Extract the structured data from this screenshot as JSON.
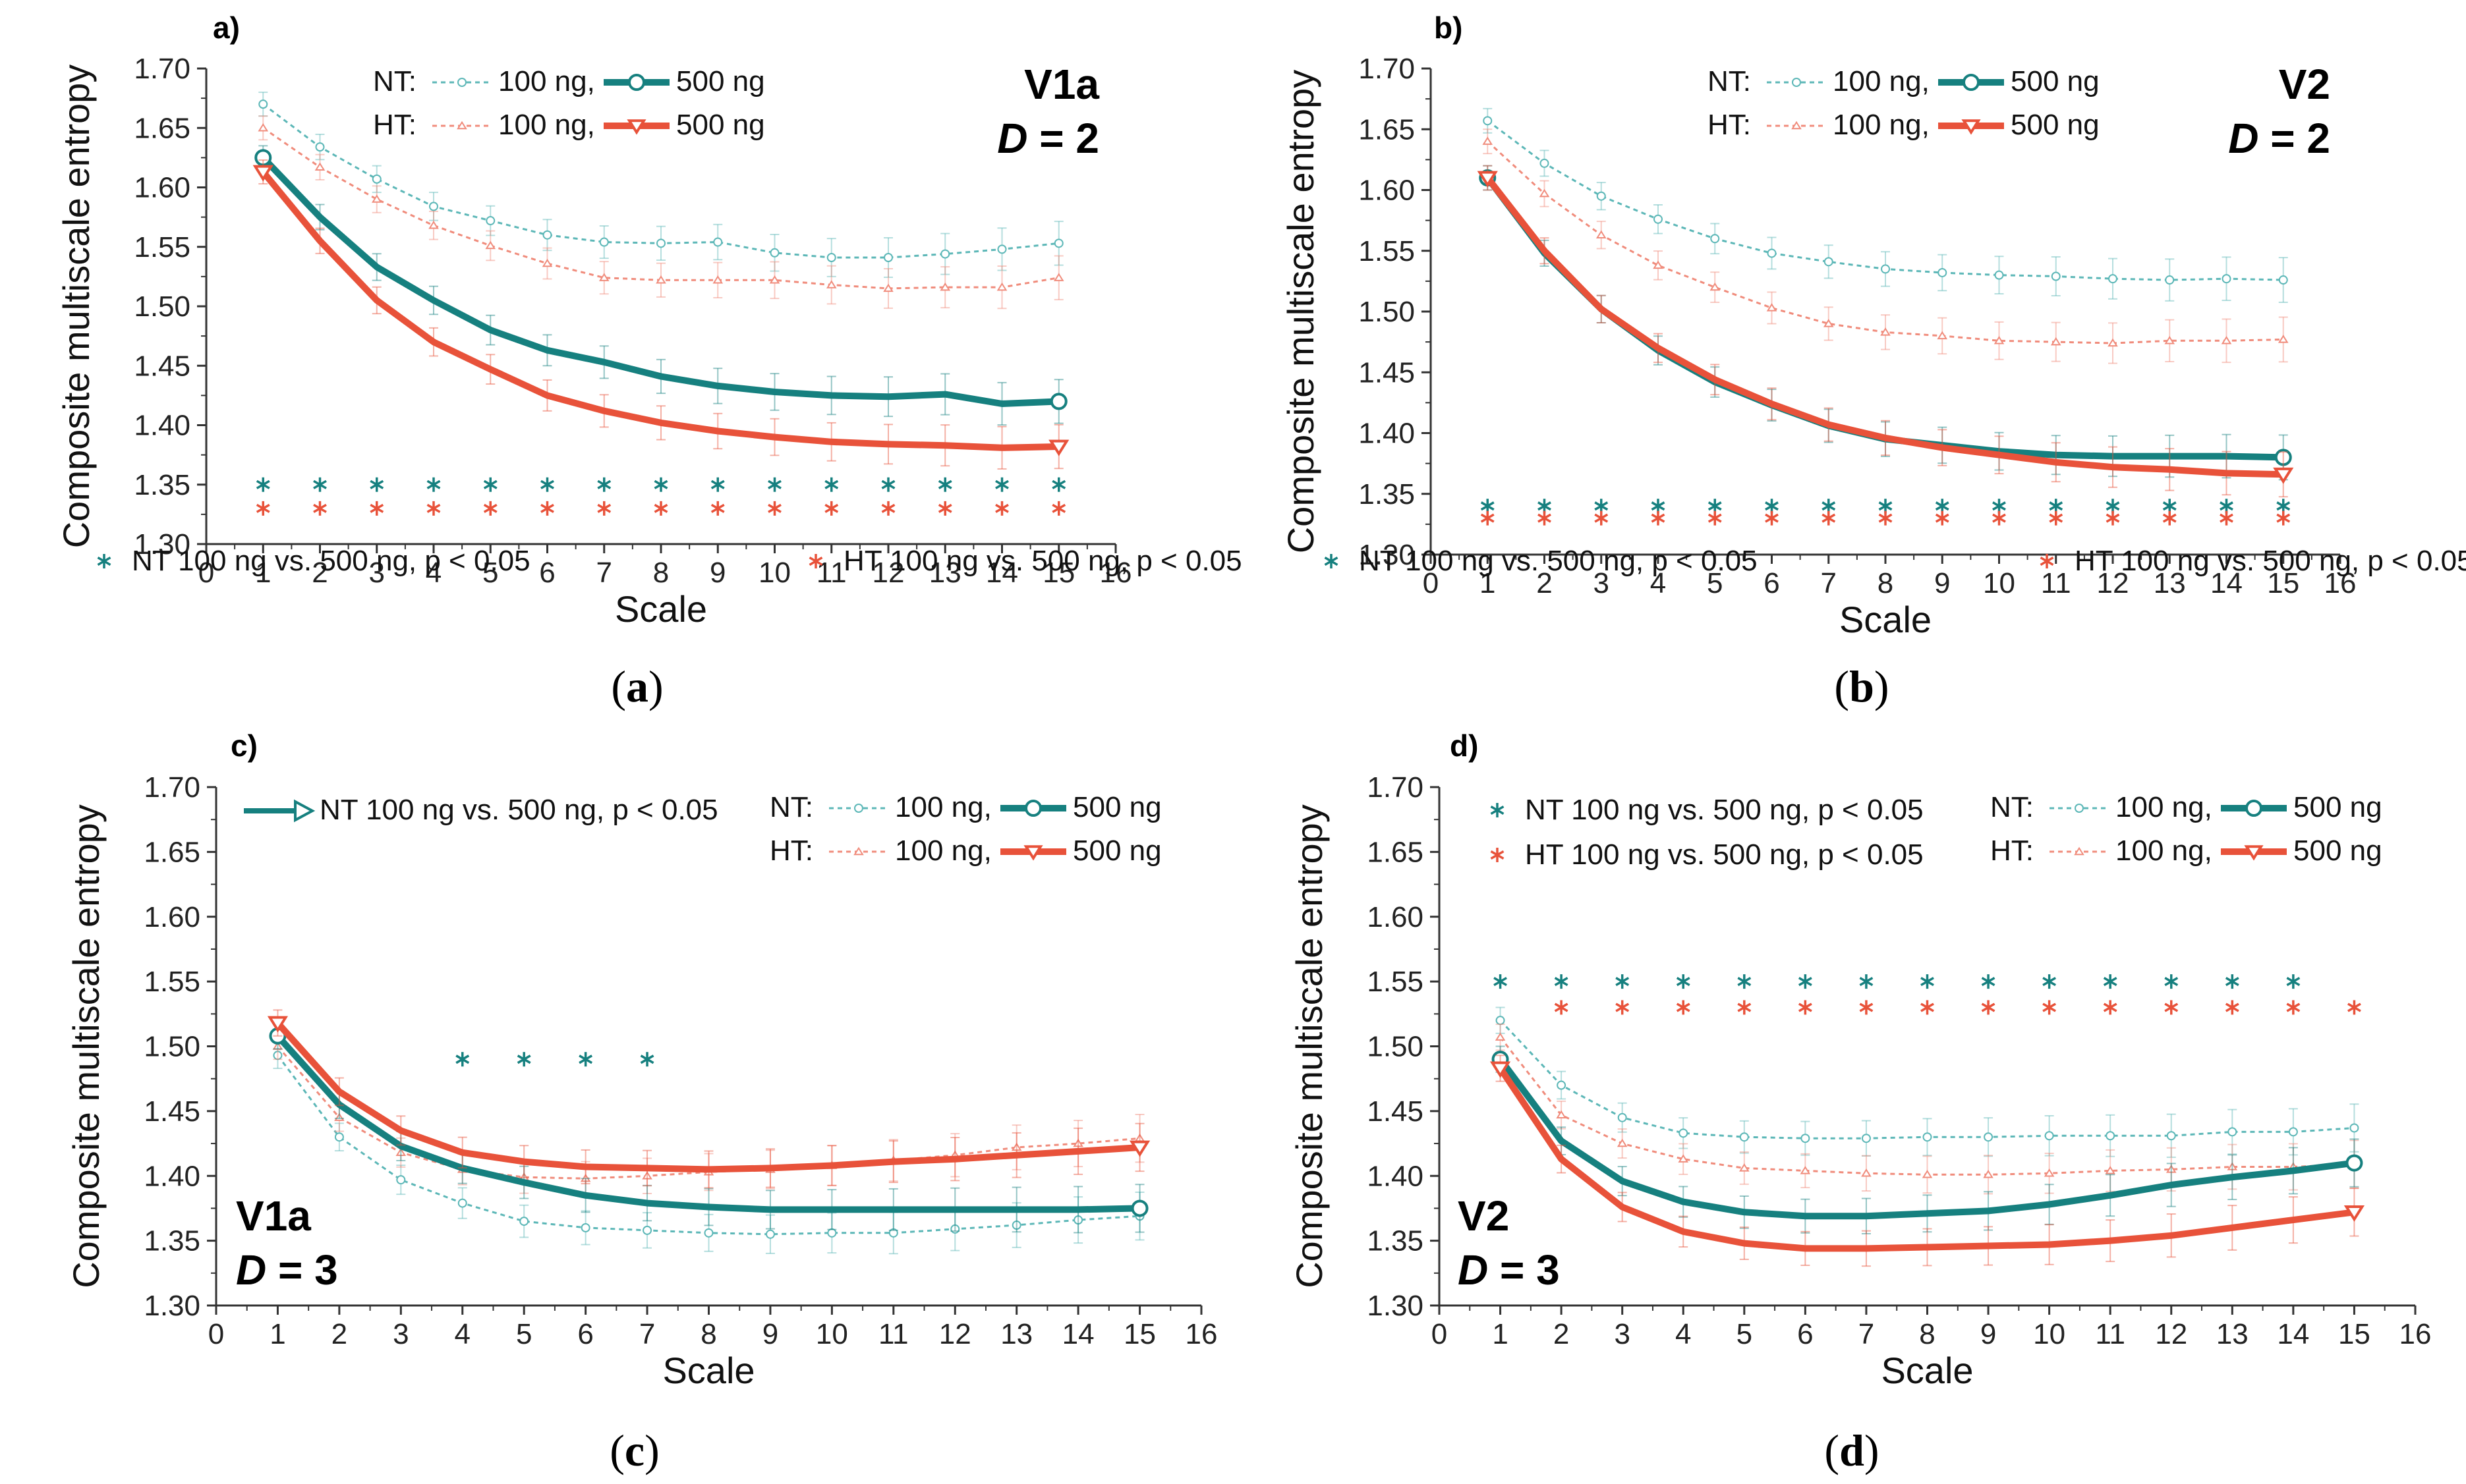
{
  "colors": {
    "nt": "#16807f",
    "ht": "#e8523a",
    "nt_light": "#5cb7b7",
    "ht_light": "#f08c7c"
  },
  "chart_data": [
    {
      "type": "line",
      "panel": "a)",
      "caption": "a",
      "tag_line1": "V1a",
      "tag_line2_italic": "D",
      "tag_line2_rest": " = 2",
      "xlabel": "Scale",
      "ylabel": "Composite multiscale entropy",
      "xlim": [
        0,
        16
      ],
      "ylim": [
        1.3,
        1.7
      ],
      "xticks": [
        "0",
        "1",
        "2",
        "3",
        "4",
        "5",
        "6",
        "7",
        "8",
        "9",
        "10",
        "11",
        "12",
        "13",
        "14",
        "15",
        "16"
      ],
      "yticks": [
        "1.30",
        "1.35",
        "1.40",
        "1.45",
        "1.50",
        "1.55",
        "1.60",
        "1.65",
        "1.70"
      ],
      "legend_nt": "NT:",
      "legend_ht": "HT:",
      "legend_100": "100 ng,",
      "legend_500": "500 ng",
      "sig_labels": [
        "NT 100 ng vs. 500 ng, p < 0.05",
        "HT 100 ng vs. 500 ng, p < 0.05"
      ],
      "x": [
        1,
        2,
        3,
        4,
        5,
        6,
        7,
        8,
        9,
        10,
        11,
        12,
        13,
        14,
        15
      ],
      "series": [
        {
          "name": "NT 100 ng",
          "values": [
            1.67,
            1.634,
            1.607,
            1.584,
            1.572,
            1.56,
            1.554,
            1.553,
            1.554,
            1.545,
            1.541,
            1.541,
            1.544,
            1.548,
            1.553
          ]
        },
        {
          "name": "HT 100 ng",
          "values": [
            1.65,
            1.617,
            1.59,
            1.568,
            1.551,
            1.536,
            1.524,
            1.522,
            1.522,
            1.522,
            1.518,
            1.515,
            1.516,
            1.516,
            1.524
          ]
        },
        {
          "name": "NT 500 ng",
          "values": [
            1.625,
            1.575,
            1.533,
            1.505,
            1.48,
            1.463,
            1.453,
            1.441,
            1.433,
            1.428,
            1.425,
            1.424,
            1.426,
            1.418,
            1.42
          ]
        },
        {
          "name": "HT 500 ng",
          "values": [
            1.613,
            1.555,
            1.505,
            1.47,
            1.447,
            1.425,
            1.412,
            1.402,
            1.395,
            1.39,
            1.386,
            1.384,
            1.383,
            1.381,
            1.382
          ]
        }
      ],
      "sig_nt": {
        "y": 1.35,
        "x": [
          1,
          2,
          3,
          4,
          5,
          6,
          7,
          8,
          9,
          10,
          11,
          12,
          13,
          14,
          15
        ]
      },
      "sig_ht": {
        "y": 1.33,
        "x": [
          1,
          2,
          3,
          4,
          5,
          6,
          7,
          8,
          9,
          10,
          11,
          12,
          13,
          14,
          15
        ]
      }
    },
    {
      "type": "line",
      "panel": "b)",
      "caption": "b",
      "tag_line1": "V2",
      "tag_line2_italic": "D",
      "tag_line2_rest": " = 2",
      "xlabel": "Scale",
      "ylabel": "Composite multiscale entropy",
      "xlim": [
        0,
        16
      ],
      "ylim": [
        1.3,
        1.7
      ],
      "xticks": [
        "0",
        "1",
        "2",
        "3",
        "4",
        "5",
        "6",
        "7",
        "8",
        "9",
        "10",
        "11",
        "12",
        "13",
        "14",
        "15",
        "16"
      ],
      "yticks": [
        "1.30",
        "1.35",
        "1.40",
        "1.45",
        "1.50",
        "1.55",
        "1.60",
        "1.65",
        "1.70"
      ],
      "legend_nt": "NT:",
      "legend_ht": "HT:",
      "legend_100": "100 ng,",
      "legend_500": "500 ng",
      "sig_labels": [
        "NT 100 ng vs. 500 ng, p < 0.05",
        "HT 100 ng vs. 500 ng, p < 0.05"
      ],
      "x": [
        1,
        2,
        3,
        4,
        5,
        6,
        7,
        8,
        9,
        10,
        11,
        12,
        13,
        14,
        15
      ],
      "series": [
        {
          "name": "NT 100 ng",
          "values": [
            1.657,
            1.622,
            1.595,
            1.576,
            1.56,
            1.548,
            1.541,
            1.535,
            1.532,
            1.53,
            1.529,
            1.527,
            1.526,
            1.527,
            1.526
          ]
        },
        {
          "name": "HT 100 ng",
          "values": [
            1.64,
            1.597,
            1.563,
            1.538,
            1.52,
            1.503,
            1.49,
            1.483,
            1.48,
            1.476,
            1.475,
            1.474,
            1.476,
            1.476,
            1.477
          ]
        },
        {
          "name": "NT 500 ng",
          "values": [
            1.61,
            1.548,
            1.502,
            1.468,
            1.442,
            1.423,
            1.406,
            1.395,
            1.39,
            1.385,
            1.382,
            1.381,
            1.381,
            1.381,
            1.38
          ]
        },
        {
          "name": "HT 500 ng",
          "values": [
            1.61,
            1.55,
            1.502,
            1.47,
            1.444,
            1.424,
            1.407,
            1.396,
            1.388,
            1.382,
            1.376,
            1.372,
            1.37,
            1.367,
            1.366
          ]
        }
      ],
      "sig_nt": {
        "y": 1.34,
        "x": [
          1,
          2,
          3,
          4,
          5,
          6,
          7,
          8,
          9,
          10,
          11,
          12,
          13,
          14,
          15
        ]
      },
      "sig_ht": {
        "y": 1.33,
        "x": [
          1,
          2,
          3,
          4,
          5,
          6,
          7,
          8,
          9,
          10,
          11,
          12,
          13,
          14,
          15
        ]
      }
    },
    {
      "type": "line",
      "panel": "c)",
      "caption": "c",
      "tag_line1": "V1a",
      "tag_line2_italic": "D",
      "tag_line2_rest": " = 3",
      "xlabel": "Scale",
      "ylabel": "Composite multiscale entropy",
      "xlim": [
        0,
        16
      ],
      "ylim": [
        1.3,
        1.7
      ],
      "xticks": [
        "0",
        "1",
        "2",
        "3",
        "4",
        "5",
        "6",
        "7",
        "8",
        "9",
        "10",
        "11",
        "12",
        "13",
        "14",
        "15",
        "16"
      ],
      "yticks": [
        "1.30",
        "1.35",
        "1.40",
        "1.45",
        "1.50",
        "1.55",
        "1.60",
        "1.65",
        "1.70"
      ],
      "legend_nt": "NT:",
      "legend_ht": "HT:",
      "legend_100": "100 ng,",
      "legend_500": "500 ng",
      "sig_labels": [
        "NT 100 ng vs. 500 ng, p < 0.05"
      ],
      "x": [
        1,
        2,
        3,
        4,
        5,
        6,
        7,
        8,
        9,
        10,
        11,
        12,
        13,
        14,
        15
      ],
      "series": [
        {
          "name": "NT 100 ng",
          "values": [
            1.493,
            1.43,
            1.397,
            1.379,
            1.365,
            1.36,
            1.358,
            1.356,
            1.355,
            1.356,
            1.356,
            1.359,
            1.362,
            1.366,
            1.369
          ]
        },
        {
          "name": "HT 100 ng",
          "values": [
            1.5,
            1.445,
            1.418,
            1.405,
            1.399,
            1.398,
            1.4,
            1.403,
            1.405,
            1.408,
            1.412,
            1.416,
            1.422,
            1.425,
            1.429
          ]
        },
        {
          "name": "NT 500 ng",
          "values": [
            1.508,
            1.455,
            1.423,
            1.406,
            1.395,
            1.385,
            1.379,
            1.376,
            1.374,
            1.374,
            1.374,
            1.374,
            1.374,
            1.374,
            1.375
          ]
        },
        {
          "name": "HT 500 ng",
          "values": [
            1.518,
            1.465,
            1.435,
            1.418,
            1.411,
            1.407,
            1.406,
            1.405,
            1.406,
            1.408,
            1.411,
            1.413,
            1.416,
            1.419,
            1.422
          ]
        }
      ],
      "sig_nt": {
        "y": 1.49,
        "x": [
          4,
          5,
          6,
          7
        ]
      },
      "sig_ht": {
        "y": 1.49,
        "x": []
      }
    },
    {
      "type": "line",
      "panel": "d)",
      "caption": "d",
      "tag_line1": "V2",
      "tag_line2_italic": "D",
      "tag_line2_rest": " = 3",
      "xlabel": "Scale",
      "ylabel": "Composite multiscale entropy",
      "xlim": [
        0,
        16
      ],
      "ylim": [
        1.3,
        1.7
      ],
      "xticks": [
        "0",
        "1",
        "2",
        "3",
        "4",
        "5",
        "6",
        "7",
        "8",
        "9",
        "10",
        "11",
        "12",
        "13",
        "14",
        "15",
        "16"
      ],
      "yticks": [
        "1.30",
        "1.35",
        "1.40",
        "1.45",
        "1.50",
        "1.55",
        "1.60",
        "1.65",
        "1.70"
      ],
      "legend_nt": "NT:",
      "legend_ht": "HT:",
      "legend_100": "100 ng,",
      "legend_500": "500 ng",
      "sig_labels": [
        "NT 100 ng vs. 500 ng, p < 0.05",
        "HT 100 ng vs. 500 ng, p < 0.05"
      ],
      "x": [
        1,
        2,
        3,
        4,
        5,
        6,
        7,
        8,
        9,
        10,
        11,
        12,
        13,
        14,
        15
      ],
      "series": [
        {
          "name": "NT 100 ng",
          "values": [
            1.52,
            1.47,
            1.445,
            1.433,
            1.43,
            1.429,
            1.429,
            1.43,
            1.43,
            1.431,
            1.431,
            1.431,
            1.434,
            1.434,
            1.437
          ]
        },
        {
          "name": "HT 100 ng",
          "values": [
            1.507,
            1.447,
            1.425,
            1.413,
            1.406,
            1.404,
            1.402,
            1.401,
            1.401,
            1.402,
            1.404,
            1.405,
            1.407,
            1.407,
            1.409
          ]
        },
        {
          "name": "NT 500 ng",
          "values": [
            1.49,
            1.427,
            1.396,
            1.38,
            1.372,
            1.369,
            1.369,
            1.371,
            1.373,
            1.378,
            1.385,
            1.393,
            1.399,
            1.404,
            1.41
          ]
        },
        {
          "name": "HT 500 ng",
          "values": [
            1.483,
            1.413,
            1.376,
            1.357,
            1.348,
            1.344,
            1.344,
            1.345,
            1.346,
            1.347,
            1.35,
            1.354,
            1.36,
            1.366,
            1.372
          ]
        }
      ],
      "sig_nt": {
        "y": 1.55,
        "x": [
          1,
          2,
          3,
          4,
          5,
          6,
          7,
          8,
          9,
          10,
          11,
          12,
          13,
          14
        ]
      },
      "sig_ht": {
        "y": 1.53,
        "x": [
          2,
          3,
          4,
          5,
          6,
          7,
          8,
          9,
          10,
          11,
          12,
          13,
          14,
          15
        ]
      }
    }
  ]
}
